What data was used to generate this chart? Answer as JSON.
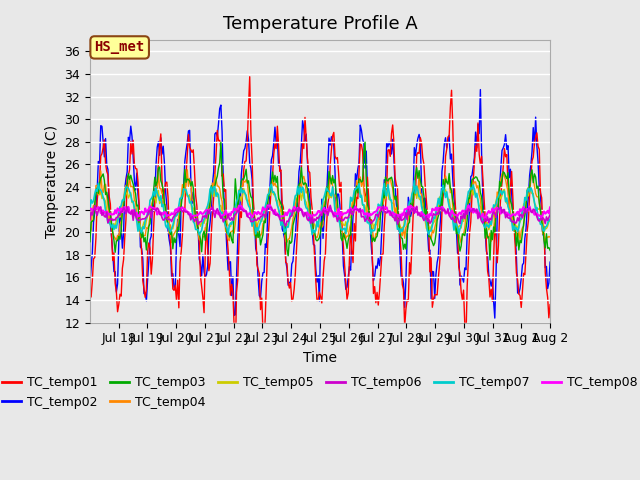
{
  "title": "Temperature Profile A",
  "xlabel": "Time",
  "ylabel": "Temperature (C)",
  "ylim": [
    12,
    37
  ],
  "yticks": [
    12,
    14,
    16,
    18,
    20,
    22,
    24,
    26,
    28,
    30,
    32,
    34,
    36
  ],
  "x_tick_labels": [
    "Jul 18",
    "Jul 19",
    "Jul 20",
    "Jul 21",
    "Jul 22",
    "Jul 23",
    "Jul 24",
    "Jul 25",
    "Jul 26",
    "Jul 27",
    "Jul 28",
    "Jul 29",
    "Jul 30",
    "Jul 31",
    "Aug 1",
    "Aug 2"
  ],
  "annotation_text": "HS_met",
  "annotation_color": "#8B0000",
  "annotation_bg": "#FFFF99",
  "line_colors": {
    "TC_temp01": "#FF0000",
    "TC_temp02": "#0000FF",
    "TC_temp03": "#00AA00",
    "TC_temp04": "#FF8800",
    "TC_temp05": "#CCCC00",
    "TC_temp06": "#CC00CC",
    "TC_temp07": "#00CCCC",
    "TC_temp08": "#FF00FF"
  },
  "bg_color": "#E8E8E8",
  "plot_bg_color": "#E8E8E8",
  "grid_color": "#FFFFFF",
  "title_fontsize": 13,
  "axis_fontsize": 10,
  "tick_fontsize": 9,
  "legend_fontsize": 9
}
